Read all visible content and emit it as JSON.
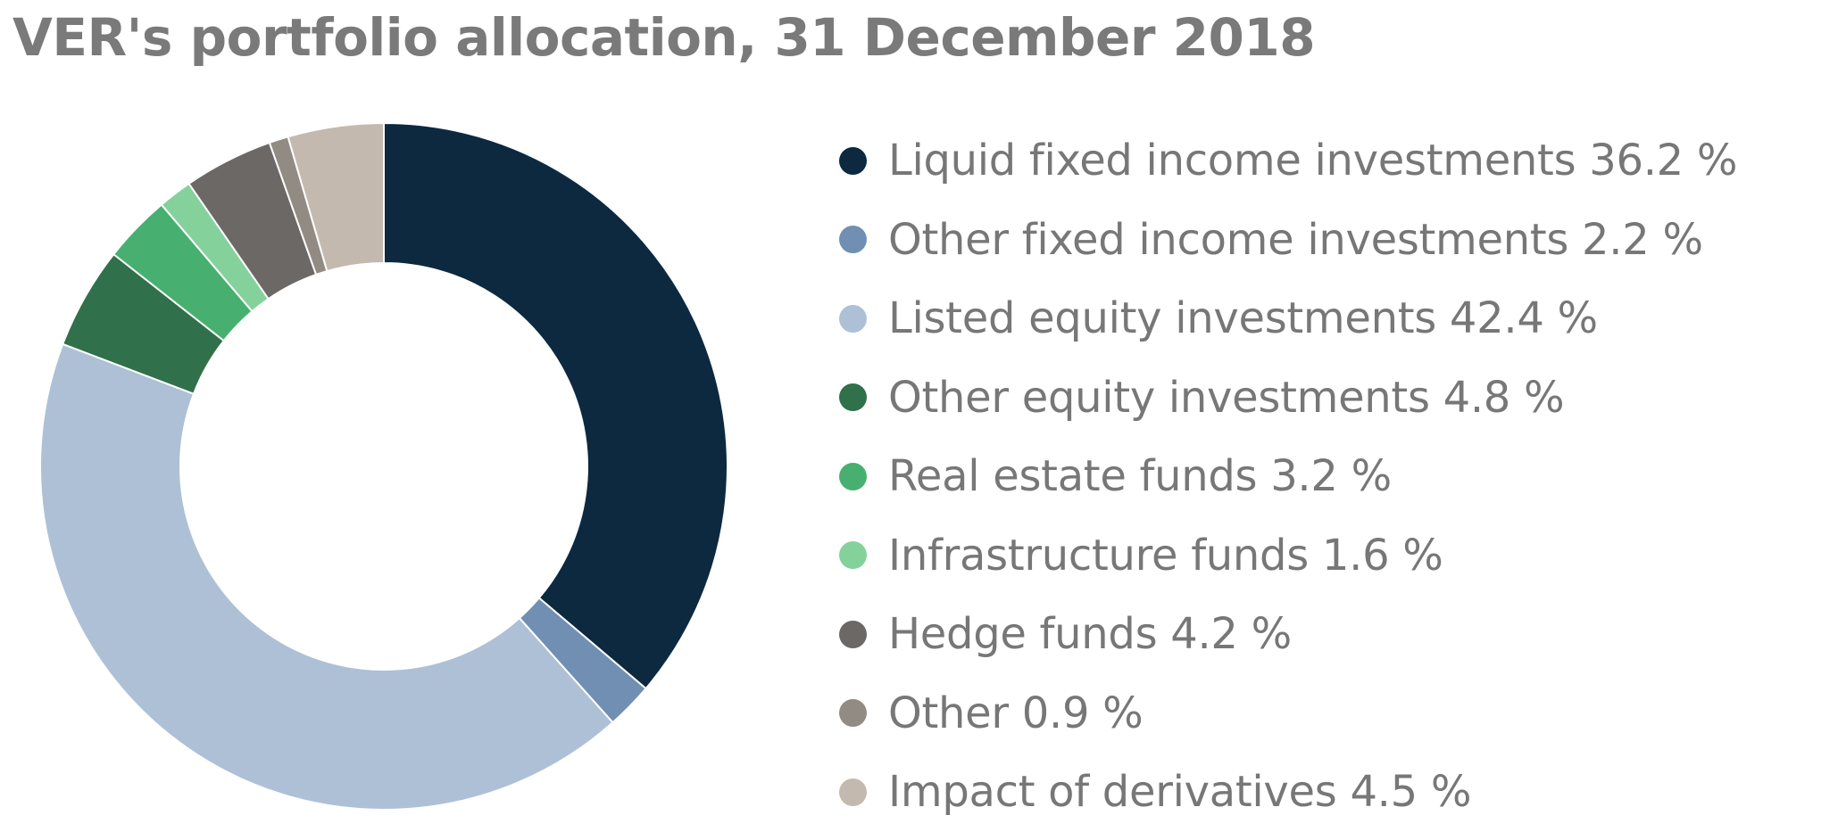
{
  "title": "VER's portfolio allocation, 31 December 2018",
  "chart_data": {
    "type": "pie",
    "title": "VER's portfolio allocation, 31 December 2018",
    "unit": "%",
    "legend_position": "right",
    "slices": [
      {
        "label": "Liquid fixed income investments",
        "value": 36.2,
        "text": "Liquid fixed income investments 36.2 %",
        "color": "#0c2940"
      },
      {
        "label": "Other fixed income investments",
        "value": 2.2,
        "text": "Other fixed income investments 2.2 %",
        "color": "#708fb3"
      },
      {
        "label": "Listed equity investments",
        "value": 42.4,
        "text": "Listed equity investments 42.4 %",
        "color": "#adc0d6"
      },
      {
        "label": "Other equity investments",
        "value": 4.8,
        "text": "Other equity investments 4.8 %",
        "color": "#30704a"
      },
      {
        "label": "Real estate funds",
        "value": 3.2,
        "text": "Real estate funds 3.2 %",
        "color": "#47b070"
      },
      {
        "label": "Infrastructure funds",
        "value": 1.6,
        "text": "Infrastructure funds 1.6 %",
        "color": "#84d19c"
      },
      {
        "label": "Hedge funds",
        "value": 4.2,
        "text": "Hedge funds 4.2 %",
        "color": "#6b6866"
      },
      {
        "label": "Other",
        "value": 0.9,
        "text": "Other 0.9 %",
        "color": "#928b84"
      },
      {
        "label": "Impact of derivatives",
        "value": 4.5,
        "text": "Impact of derivatives 4.5 %",
        "color": "#c3b9ae"
      }
    ]
  }
}
